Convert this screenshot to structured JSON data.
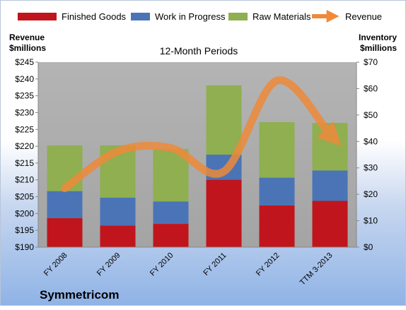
{
  "company": "Symmetricom",
  "colors": {
    "finished_goods": "#c0151c",
    "work_in_progress": "#4a74b5",
    "raw_materials": "#8faf50",
    "revenue": "#ee8a3a",
    "plot_bg": "#ababab"
  },
  "chart_data": {
    "type": "bar",
    "stacked": true,
    "title": "12-Month Periods",
    "ylabel_left": "Revenue $millions",
    "ylabel_right": "Inventory $millions",
    "categories": [
      "FY 2008",
      "FY 2009",
      "FY 2010",
      "FY 2011",
      "FY 2012",
      "TTM 3-2013"
    ],
    "ylim_left": [
      190,
      245
    ],
    "ylim_right": [
      0,
      70
    ],
    "left_ticks": [
      "$190",
      "$195",
      "$200",
      "$205",
      "$210",
      "$215",
      "$220",
      "$225",
      "$230",
      "$235",
      "$240",
      "$245"
    ],
    "right_ticks": [
      "$0",
      "$10",
      "$20",
      "$30",
      "$40",
      "$50",
      "$60",
      "$70"
    ],
    "series": [
      {
        "name": "Finished Goods",
        "axis": "right",
        "values": [
          11.0,
          8.2,
          8.8,
          25.5,
          15.8,
          17.5
        ]
      },
      {
        "name": "Work in Progress",
        "axis": "right",
        "values": [
          10.2,
          10.5,
          8.5,
          9.5,
          10.5,
          11.5
        ]
      },
      {
        "name": "Raw Materials",
        "axis": "right",
        "values": [
          17.3,
          19.8,
          19.8,
          26.2,
          21.0,
          18.0
        ]
      },
      {
        "name": "Revenue",
        "type": "line",
        "axis": "left",
        "values": [
          207.5,
          218.5,
          219.5,
          212.5,
          239.5,
          223.5
        ]
      }
    ],
    "legend_position": "top",
    "grid": false
  }
}
